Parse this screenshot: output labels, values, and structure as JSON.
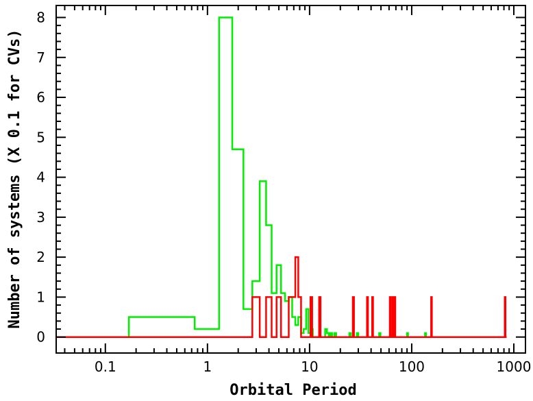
{
  "chart_data": {
    "type": "line",
    "style": "step-histogram",
    "xlabel": "Orbital Period",
    "ylabel": "Number of systems (X 0.1 for CVs)",
    "xscale": "log",
    "xlim": [
      0.033,
      1300
    ],
    "ylim": [
      -0.4,
      8.3
    ],
    "grid": false,
    "legend": "none",
    "x_ticks": [
      {
        "value": 0.1,
        "label": "0.1"
      },
      {
        "value": 1,
        "label": "1"
      },
      {
        "value": 10,
        "label": "10"
      },
      {
        "value": 100,
        "label": "100"
      },
      {
        "value": 1000,
        "label": "1000"
      }
    ],
    "y_ticks": [
      {
        "value": 0,
        "label": "0"
      },
      {
        "value": 1,
        "label": "1"
      },
      {
        "value": 2,
        "label": "2"
      },
      {
        "value": 3,
        "label": "3"
      },
      {
        "value": 4,
        "label": "4"
      },
      {
        "value": 5,
        "label": "5"
      },
      {
        "value": 6,
        "label": "6"
      },
      {
        "value": 7,
        "label": "7"
      },
      {
        "value": 8,
        "label": "8"
      }
    ],
    "series": [
      {
        "color": "#00ee00",
        "x_start": 0.033,
        "x_end": 800,
        "steps": [
          [
            0.17,
            0.5
          ],
          [
            0.75,
            0.2
          ],
          [
            1.3,
            8.0
          ],
          [
            1.75,
            4.7
          ],
          [
            2.25,
            0.7
          ],
          [
            2.75,
            1.4
          ],
          [
            3.25,
            3.9
          ],
          [
            3.75,
            2.8
          ],
          [
            4.25,
            1.1
          ],
          [
            4.75,
            1.8
          ],
          [
            5.25,
            1.1
          ],
          [
            5.75,
            0.9
          ],
          [
            6.25,
            1.0
          ],
          [
            6.75,
            0.5
          ],
          [
            7.25,
            0.3
          ],
          [
            7.75,
            0.5
          ],
          [
            8.25,
            0.1
          ],
          [
            8.75,
            0.2
          ],
          [
            9.25,
            0.7
          ],
          [
            9.75,
            0.1
          ],
          [
            10.25,
            0.2
          ],
          [
            10.75,
            0.0
          ],
          [
            14.2,
            0.2
          ],
          [
            14.8,
            0.1
          ],
          [
            15.4,
            0.0
          ],
          [
            16.0,
            0.1
          ],
          [
            16.6,
            0.0
          ],
          [
            17.5,
            0.1
          ],
          [
            18.2,
            0.0
          ],
          [
            24.5,
            0.1
          ],
          [
            25.3,
            0.0
          ],
          [
            29.0,
            0.1
          ],
          [
            30.0,
            0.0
          ],
          [
            48.0,
            0.1
          ],
          [
            49.5,
            0.0
          ],
          [
            90.0,
            0.1
          ],
          [
            92.0,
            0.0
          ],
          [
            135.0,
            0.1
          ],
          [
            138.0,
            0.0
          ]
        ]
      },
      {
        "color": "#ff0000",
        "x_start": 0.033,
        "x_end": 850,
        "steps": [
          [
            2.75,
            1.0
          ],
          [
            3.25,
            0.0
          ],
          [
            3.75,
            1.0
          ],
          [
            4.25,
            0.0
          ],
          [
            4.75,
            1.0
          ],
          [
            5.25,
            0.0
          ],
          [
            6.25,
            1.0
          ],
          [
            7.25,
            2.0
          ],
          [
            7.75,
            1.0
          ],
          [
            8.25,
            0.0
          ],
          [
            10.2,
            1.0
          ],
          [
            10.6,
            0.0
          ],
          [
            12.4,
            1.0
          ],
          [
            12.8,
            0.0
          ],
          [
            26.5,
            1.0
          ],
          [
            27.2,
            0.0
          ],
          [
            36.5,
            1.0
          ],
          [
            37.3,
            0.0
          ],
          [
            41.0,
            1.0
          ],
          [
            41.8,
            0.0
          ],
          [
            61.0,
            1.0
          ],
          [
            62.0,
            0.0
          ],
          [
            64.5,
            1.0
          ],
          [
            65.5,
            0.0
          ],
          [
            68.0,
            1.0
          ],
          [
            69.0,
            0.0
          ],
          [
            155.0,
            1.0
          ],
          [
            157.5,
            0.0
          ],
          [
            815.0,
            1.0
          ],
          [
            828.0,
            0.0
          ]
        ]
      }
    ]
  }
}
